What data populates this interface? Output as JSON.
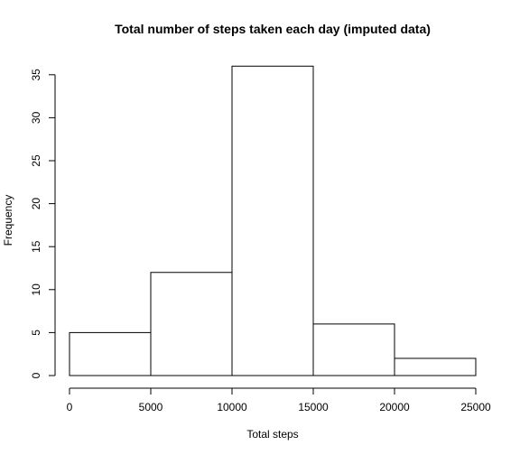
{
  "chart_data": {
    "type": "bar",
    "title": "Total number of steps taken each day (imputed data)",
    "xlabel": "Total steps",
    "ylabel": "Frequency",
    "bins": [
      {
        "start": 0,
        "end": 5000,
        "count": 5
      },
      {
        "start": 5000,
        "end": 10000,
        "count": 12
      },
      {
        "start": 10000,
        "end": 15000,
        "count": 36
      },
      {
        "start": 15000,
        "end": 20000,
        "count": 6
      },
      {
        "start": 20000,
        "end": 25000,
        "count": 2
      }
    ],
    "xlim": [
      0,
      25000
    ],
    "ylim": [
      0,
      36
    ],
    "x_ticks": [
      0,
      5000,
      10000,
      15000,
      20000,
      25000
    ],
    "y_ticks": [
      0,
      5,
      10,
      15,
      20,
      25,
      30,
      35
    ],
    "grid": false,
    "bar_fill": "#ffffff",
    "bar_stroke": "#000000"
  }
}
